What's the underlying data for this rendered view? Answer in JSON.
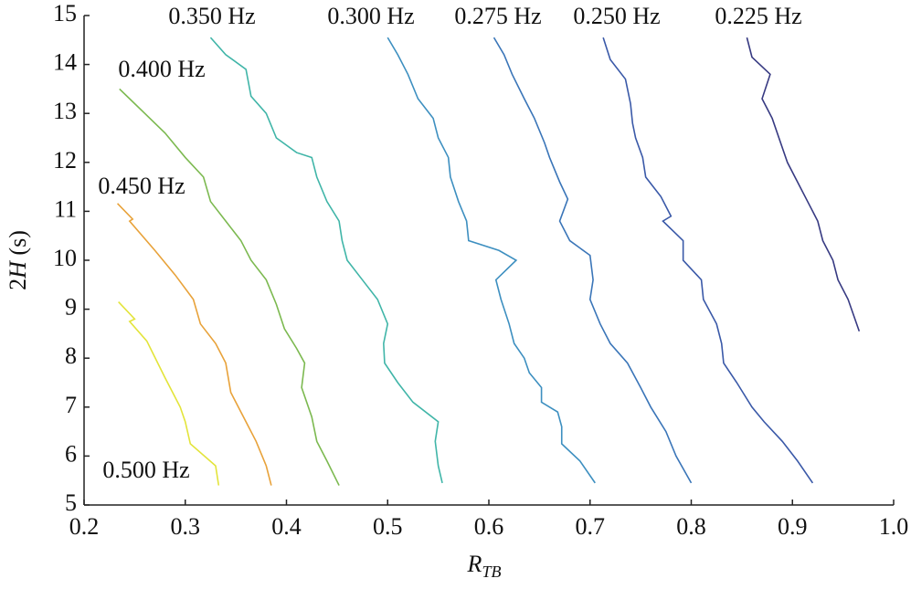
{
  "chart_data": {
    "type": "line",
    "xlabel": {
      "main": "R",
      "sub": "TB"
    },
    "ylabel": {
      "pre": "2",
      "italic": "H",
      "post": " (s)"
    },
    "xlim": [
      0.2,
      1
    ],
    "ylim": [
      5,
      15
    ],
    "xticks": [
      0.2,
      0.3,
      0.4,
      0.5,
      0.6,
      0.7,
      0.8,
      0.9,
      {
        "value": 1,
        "label": "1.0"
      }
    ],
    "yticks": [
      5,
      6,
      7,
      8,
      9,
      10,
      11,
      12,
      13,
      14,
      15
    ],
    "series": [
      {
        "name": "0.500 Hz",
        "color": "#e3e43a",
        "x": [
          0.234,
          0.25,
          0.245,
          0.262,
          0.28,
          0.295,
          0.3,
          0.305,
          0.33,
          0.333
        ],
        "values": [
          9.15,
          8.8,
          8.75,
          8.35,
          7.6,
          7.0,
          6.7,
          6.25,
          5.8,
          5.4
        ]
      },
      {
        "name": "0.450 Hz",
        "color": "#e8a23a",
        "x": [
          0.233,
          0.248,
          0.245,
          0.27,
          0.29,
          0.308,
          0.315,
          0.33,
          0.34,
          0.345,
          0.36,
          0.37,
          0.38,
          0.385
        ],
        "values": [
          11.16,
          10.84,
          10.8,
          10.2,
          9.7,
          9.2,
          8.7,
          8.3,
          7.9,
          7.3,
          6.7,
          6.3,
          5.8,
          5.4
        ]
      },
      {
        "name": "0.400 Hz",
        "color": "#7cb950",
        "x": [
          0.235,
          0.245,
          0.26,
          0.28,
          0.3,
          0.318,
          0.325,
          0.34,
          0.355,
          0.365,
          0.38,
          0.39,
          0.398,
          0.41,
          0.418,
          0.415,
          0.425,
          0.43,
          0.44,
          0.452
        ],
        "values": [
          13.5,
          13.3,
          13.0,
          12.6,
          12.1,
          11.7,
          11.2,
          10.8,
          10.4,
          10.0,
          9.6,
          9.1,
          8.6,
          8.2,
          7.9,
          7.4,
          6.8,
          6.3,
          5.9,
          5.4
        ]
      },
      {
        "name": "0.350 Hz",
        "color": "#40b5a8",
        "x": [
          0.325,
          0.34,
          0.36,
          0.365,
          0.38,
          0.39,
          0.41,
          0.425,
          0.43,
          0.44,
          0.452,
          0.455,
          0.46,
          0.475,
          0.49,
          0.5,
          0.496,
          0.497,
          0.51,
          0.525,
          0.55,
          0.547,
          0.55,
          0.554
        ],
        "values": [
          14.55,
          14.2,
          13.9,
          13.35,
          13.0,
          12.5,
          12.2,
          12.1,
          11.7,
          11.2,
          10.8,
          10.4,
          10.0,
          9.6,
          9.2,
          8.7,
          8.3,
          7.9,
          7.5,
          7.1,
          6.7,
          6.3,
          5.8,
          5.45
        ]
      },
      {
        "name": "0.300 Hz",
        "color": "#3d8fc0",
        "x": [
          0.5,
          0.51,
          0.52,
          0.53,
          0.545,
          0.55,
          0.56,
          0.562,
          0.57,
          0.578,
          0.58,
          0.61,
          0.627,
          0.607,
          0.612,
          0.62,
          0.625,
          0.635,
          0.64,
          0.652,
          0.652,
          0.668,
          0.672,
          0.672,
          0.69,
          0.705
        ],
        "values": [
          14.55,
          14.2,
          13.8,
          13.3,
          12.9,
          12.5,
          12.1,
          11.7,
          11.2,
          10.8,
          10.4,
          10.2,
          10.0,
          9.6,
          9.2,
          8.7,
          8.3,
          8.0,
          7.7,
          7.4,
          7.1,
          6.9,
          6.6,
          6.25,
          5.9,
          5.45
        ]
      },
      {
        "name": "0.275 Hz",
        "color": "#3a75b8",
        "x": [
          0.605,
          0.615,
          0.623,
          0.635,
          0.645,
          0.655,
          0.66,
          0.67,
          0.678,
          0.67,
          0.68,
          0.7,
          0.703,
          0.7,
          0.71,
          0.72,
          0.737,
          0.75,
          0.76,
          0.775,
          0.785,
          0.8
        ],
        "values": [
          14.55,
          14.2,
          13.8,
          13.3,
          12.9,
          12.4,
          12.1,
          11.6,
          11.25,
          10.8,
          10.4,
          10.1,
          9.6,
          9.2,
          8.7,
          8.3,
          7.9,
          7.4,
          7.0,
          6.5,
          6.0,
          5.45
        ]
      },
      {
        "name": "0.250 Hz",
        "color": "#3a59a8",
        "x": [
          0.713,
          0.72,
          0.735,
          0.74,
          0.742,
          0.745,
          0.752,
          0.755,
          0.77,
          0.78,
          0.772,
          0.792,
          0.792,
          0.81,
          0.812,
          0.825,
          0.83,
          0.832,
          0.845,
          0.86,
          0.872,
          0.89,
          0.905,
          0.92
        ],
        "values": [
          14.55,
          14.1,
          13.7,
          13.2,
          12.8,
          12.5,
          12.1,
          11.7,
          11.3,
          10.9,
          10.8,
          10.4,
          10.0,
          9.6,
          9.2,
          8.7,
          8.3,
          7.9,
          7.5,
          7.0,
          6.7,
          6.3,
          5.9,
          5.45
        ]
      },
      {
        "name": "0.225 Hz",
        "color": "#373a82",
        "x": [
          0.855,
          0.86,
          0.878,
          0.87,
          0.88,
          0.89,
          0.895,
          0.905,
          0.915,
          0.925,
          0.93,
          0.94,
          0.945,
          0.955,
          0.966
        ],
        "values": [
          14.55,
          14.15,
          13.8,
          13.3,
          12.9,
          12.3,
          12.0,
          11.6,
          11.2,
          10.8,
          10.4,
          10.0,
          9.6,
          9.2,
          8.55
        ]
      }
    ]
  }
}
